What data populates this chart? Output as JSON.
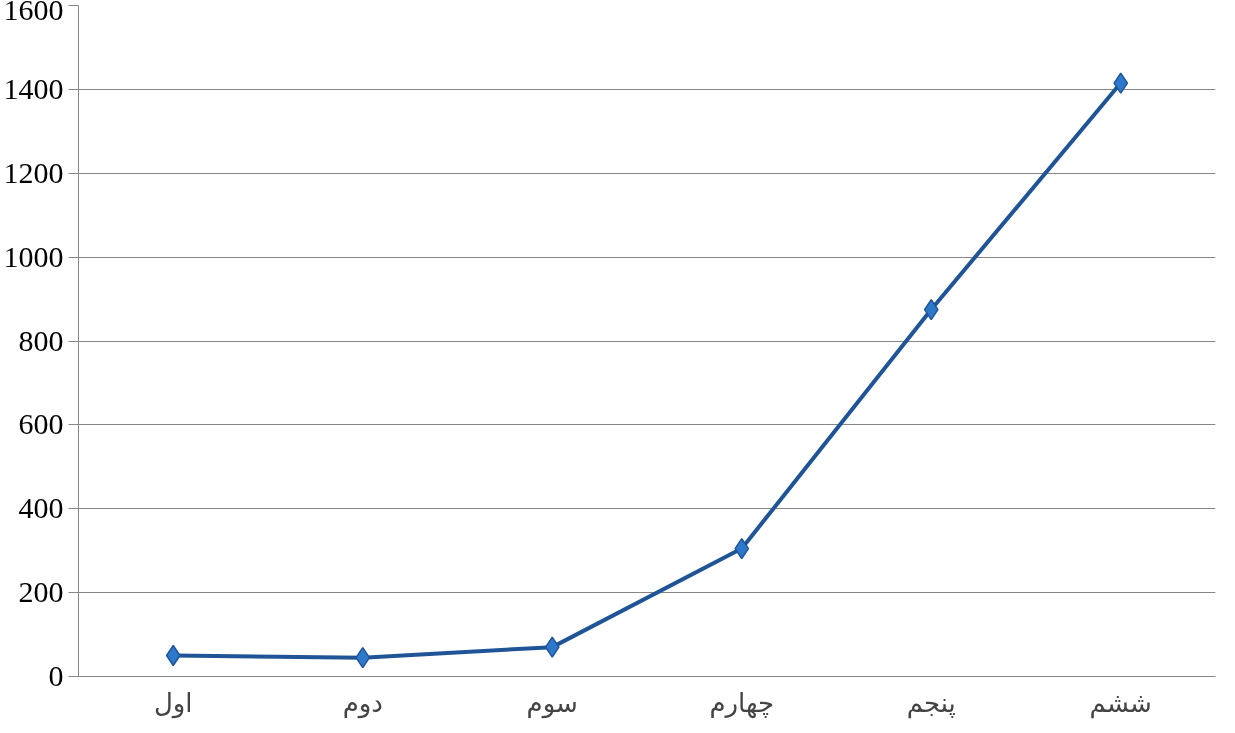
{
  "chart_data": {
    "type": "line",
    "categories": [
      "اول",
      "دوم",
      "سوم",
      "چهارم",
      "پنجم",
      "ششم"
    ],
    "series": [
      {
        "color": "#1f5596",
        "values": [
          50,
          45,
          70,
          305,
          875,
          1415
        ]
      }
    ],
    "ylim": [
      0,
      1600
    ],
    "yticks": [
      0,
      200,
      400,
      600,
      800,
      1000,
      1200,
      1400,
      1600
    ],
    "grid": "y",
    "marker": "diamond",
    "line_style": "solid"
  }
}
